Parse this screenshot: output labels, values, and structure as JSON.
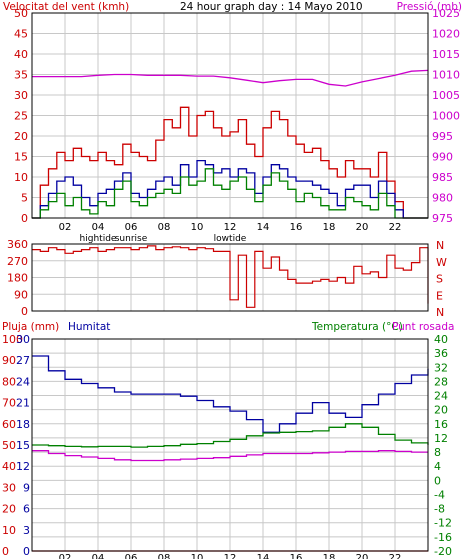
{
  "header": {
    "wind_speed_label": "Velocitat del vent (kmh)",
    "title": "24 hour graph day : 14 Mayo 2010",
    "pressure_label": "Pressió (mb)"
  },
  "colors": {
    "red": "#cc0000",
    "wind_avg_green": "#008000",
    "wind_blue": "#0000a0",
    "pressure_magenta": "#cc00cc",
    "dir_red": "#cc0000",
    "temp_green": "#008000",
    "dew_magenta": "#cc00cc",
    "humidity_blue": "#0000a0",
    "rain_red": "#cc0000",
    "grid": "#c8c8c8",
    "frame": "#000000"
  },
  "x_axis": {
    "ticks": [
      "02",
      "04",
      "06",
      "08",
      "10",
      "12",
      "14",
      "16",
      "18",
      "20",
      "22"
    ],
    "annotations": [
      "hightide",
      "sunrise",
      "lowtide"
    ]
  },
  "panel_direction": {
    "compass_labels": [
      "N",
      "W",
      "S",
      "E",
      "N"
    ]
  },
  "panel_thermo": {
    "rain_label": "Pluja (mm)",
    "humidity_label": "Humitat",
    "temp_label": "Temperatura (°C)",
    "dew_label": "Punt rosada"
  },
  "chart_data": [
    {
      "type": "line",
      "title": "24 hour graph day : 14 Mayo 2010",
      "x_range_hours": [
        0,
        24
      ],
      "x_ticks": [
        "02",
        "04",
        "06",
        "08",
        "10",
        "12",
        "14",
        "16",
        "18",
        "20",
        "22"
      ],
      "left_axis": {
        "label": "Velocitat del vent (kmh)",
        "ylim": [
          0,
          50
        ],
        "ticks": [
          0,
          5,
          10,
          15,
          20,
          25,
          30,
          35,
          40,
          45,
          50
        ]
      },
      "right_axis": {
        "label": "Pressió (mb)",
        "ylim": [
          975,
          1025
        ],
        "ticks": [
          975,
          980,
          985,
          990,
          995,
          1000,
          1005,
          1010,
          1015,
          1020,
          1025
        ]
      },
      "grid": true,
      "series": [
        {
          "name": "gust",
          "axis": "left",
          "color": "#cc0000",
          "x": [
            0,
            0.5,
            1,
            1.5,
            2,
            2.5,
            3,
            3.5,
            4,
            4.5,
            5,
            5.5,
            6,
            6.5,
            7,
            7.5,
            8,
            8.5,
            9,
            9.5,
            10,
            10.5,
            11,
            11.5,
            12,
            12.5,
            13,
            13.5,
            14,
            14.5,
            15,
            15.5,
            16,
            16.5,
            17,
            17.5,
            18,
            18.5,
            19,
            19.5,
            20,
            20.5,
            21,
            21.5,
            22,
            22.5,
            23,
            23.5,
            24
          ],
          "y": [
            0,
            8,
            12,
            16,
            14,
            17,
            15,
            14,
            16,
            14,
            13,
            18,
            16,
            15,
            14,
            19,
            24,
            22,
            27,
            20,
            25,
            26,
            22,
            20,
            21,
            24,
            18,
            15,
            22,
            26,
            24,
            20,
            18,
            16,
            17,
            14,
            12,
            10,
            14,
            12,
            12,
            10,
            16,
            9,
            4,
            0,
            0,
            0,
            0
          ]
        },
        {
          "name": "wind",
          "axis": "left",
          "color": "#0000a0",
          "x": [
            0,
            0.5,
            1,
            1.5,
            2,
            2.5,
            3,
            3.5,
            4,
            4.5,
            5,
            5.5,
            6,
            6.5,
            7,
            7.5,
            8,
            8.5,
            9,
            9.5,
            10,
            10.5,
            11,
            11.5,
            12,
            12.5,
            13,
            13.5,
            14,
            14.5,
            15,
            15.5,
            16,
            16.5,
            17,
            17.5,
            18,
            18.5,
            19,
            19.5,
            20,
            20.5,
            21,
            21.5,
            22,
            22.5,
            23,
            23.5,
            24
          ],
          "y": [
            0,
            3,
            6,
            9,
            10,
            8,
            5,
            3,
            6,
            7,
            9,
            11,
            6,
            5,
            7,
            9,
            10,
            8,
            13,
            10,
            14,
            13,
            11,
            12,
            10,
            12,
            11,
            6,
            10,
            13,
            12,
            10,
            9,
            9,
            8,
            7,
            6,
            3,
            7,
            8,
            8,
            5,
            9,
            6,
            2,
            0,
            0,
            0,
            0
          ]
        },
        {
          "name": "average",
          "axis": "left",
          "color": "#008000",
          "x": [
            0,
            0.5,
            1,
            1.5,
            2,
            2.5,
            3,
            3.5,
            4,
            4.5,
            5,
            5.5,
            6,
            6.5,
            7,
            7.5,
            8,
            8.5,
            9,
            9.5,
            10,
            10.5,
            11,
            11.5,
            12,
            12.5,
            13,
            13.5,
            14,
            14.5,
            15,
            15.5,
            16,
            16.5,
            17,
            17.5,
            18,
            18.5,
            19,
            19.5,
            20,
            20.5,
            21,
            21.5,
            22,
            22.5,
            23,
            23.5,
            24
          ],
          "y": [
            0,
            2,
            4,
            6,
            3,
            5,
            2,
            1,
            4,
            3,
            7,
            9,
            4,
            3,
            5,
            6,
            7,
            6,
            10,
            8,
            9,
            12,
            8,
            7,
            9,
            10,
            7,
            4,
            8,
            11,
            9,
            7,
            4,
            6,
            5,
            3,
            2,
            2,
            5,
            4,
            3,
            2,
            6,
            3,
            0,
            0,
            0,
            0,
            0
          ]
        },
        {
          "name": "pressure",
          "axis": "right",
          "color": "#cc00cc",
          "x": [
            0,
            1,
            2,
            3,
            4,
            5,
            6,
            7,
            8,
            9,
            10,
            11,
            12,
            13,
            14,
            15,
            16,
            17,
            18,
            19,
            20,
            21,
            22,
            23,
            24
          ],
          "y": [
            1009.5,
            1009.5,
            1009.5,
            1009.5,
            1009.8,
            1010,
            1010,
            1009.8,
            1009.8,
            1009.8,
            1009.6,
            1009.6,
            1009.2,
            1008.6,
            1008,
            1008.5,
            1008.8,
            1008.8,
            1007.6,
            1007.2,
            1008.2,
            1009,
            1009.8,
            1010.8,
            1011
          ]
        }
      ]
    },
    {
      "type": "line",
      "title": "",
      "x_range_hours": [
        0,
        24
      ],
      "left_axis": {
        "label": "",
        "ylim": [
          0,
          360
        ],
        "ticks": [
          0,
          90,
          180,
          270,
          360
        ]
      },
      "right_axis": {
        "labels": [
          "N",
          "W",
          "S",
          "E",
          "N"
        ]
      },
      "grid": true,
      "series": [
        {
          "name": "",
          "axis": "left",
          "color": "#cc0000",
          "x": [
            0,
            0.5,
            1,
            1.5,
            2,
            2.5,
            3,
            3.5,
            4,
            4.5,
            5,
            5.5,
            6,
            6.5,
            7,
            7.5,
            8,
            8.5,
            9,
            9.5,
            10,
            10.5,
            11,
            11.5,
            12,
            12.5,
            13,
            13.5,
            14,
            14.5,
            15,
            15.5,
            16,
            16.5,
            17,
            17.5,
            18,
            18.5,
            19,
            19.5,
            20,
            20.5,
            21,
            21.5,
            22,
            22.5,
            23,
            23.5,
            24
          ],
          "y": [
            330,
            320,
            340,
            330,
            310,
            320,
            330,
            340,
            320,
            330,
            340,
            340,
            330,
            340,
            350,
            330,
            340,
            345,
            340,
            330,
            340,
            335,
            320,
            320,
            60,
            300,
            20,
            320,
            230,
            290,
            220,
            170,
            150,
            150,
            160,
            170,
            160,
            180,
            150,
            240,
            200,
            210,
            180,
            300,
            230,
            220,
            260,
            340,
            40
          ]
        }
      ]
    },
    {
      "type": "line",
      "title": "",
      "x_range_hours": [
        0,
        24
      ],
      "left_axis_rain": {
        "label": "Pluja (mm)",
        "ylim": [
          0,
          100
        ],
        "ticks": [
          0,
          10,
          20,
          30,
          40,
          50,
          60,
          70,
          80,
          90,
          100
        ]
      },
      "left_axis_humidity": {
        "label": "Humitat",
        "ylim": [
          0,
          30
        ],
        "ticks": [
          0,
          3,
          6,
          9,
          12,
          15,
          18,
          21,
          24,
          27,
          30
        ]
      },
      "right_axis": {
        "label": "Temperatura (°C)",
        "ylim": [
          -20,
          40
        ],
        "ticks": [
          -20,
          -16,
          -12,
          -8,
          -4,
          0,
          4,
          8,
          12,
          16,
          20,
          24,
          28,
          32,
          36,
          40
        ]
      },
      "grid": true,
      "series": [
        {
          "name": "Humitat",
          "axis": "left_rain",
          "color": "#0000a0",
          "x": [
            0,
            1,
            2,
            3,
            4,
            5,
            6,
            7,
            8,
            9,
            10,
            11,
            12,
            13,
            14,
            15,
            16,
            17,
            18,
            19,
            20,
            21,
            22,
            23,
            24
          ],
          "y": [
            92,
            85,
            81,
            79,
            77,
            75,
            74,
            74,
            74,
            73,
            71,
            68,
            66,
            62,
            56,
            60,
            65,
            70,
            65,
            63,
            69,
            74,
            79,
            83,
            86
          ]
        },
        {
          "name": "Temperatura",
          "axis": "right",
          "color": "#008000",
          "x": [
            0,
            1,
            2,
            3,
            4,
            5,
            6,
            7,
            8,
            9,
            10,
            11,
            12,
            13,
            14,
            15,
            16,
            17,
            18,
            19,
            20,
            21,
            22,
            23,
            24
          ],
          "y": [
            10,
            9.8,
            9.6,
            9.5,
            9.6,
            9.6,
            9.4,
            9.6,
            9.8,
            10.2,
            10.4,
            11,
            11.6,
            12.6,
            13.4,
            13.6,
            13.8,
            14,
            15,
            16,
            15,
            13,
            11.4,
            10.6,
            10
          ]
        },
        {
          "name": "Punt rosada",
          "axis": "right",
          "color": "#cc00cc",
          "x": [
            0,
            1,
            2,
            3,
            4,
            5,
            6,
            7,
            8,
            9,
            10,
            11,
            12,
            13,
            14,
            15,
            16,
            17,
            18,
            19,
            20,
            21,
            22,
            23,
            24
          ],
          "y": [
            8.4,
            7.6,
            7,
            6.6,
            6.2,
            5.8,
            5.6,
            5.6,
            5.8,
            6,
            6.2,
            6.4,
            6.8,
            7.2,
            7.6,
            7.6,
            7.6,
            7.8,
            8,
            8.2,
            8.2,
            8.4,
            8.2,
            8,
            8
          ]
        },
        {
          "name": "Pluja",
          "axis": "left_rain",
          "color": "#cc0000",
          "x": [
            0,
            24
          ],
          "y": [
            0,
            0
          ]
        }
      ]
    }
  ]
}
